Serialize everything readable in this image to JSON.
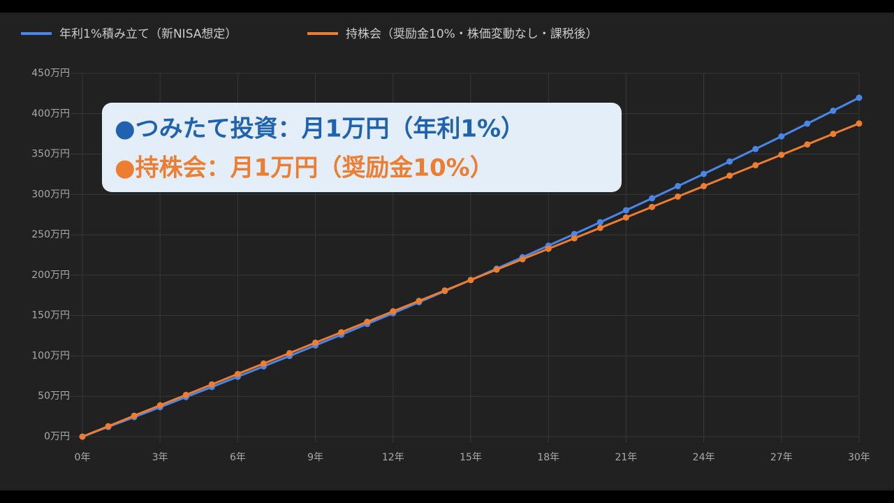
{
  "chart_data": {
    "type": "line",
    "legend_position": "top-left",
    "grid": true,
    "x": [
      0,
      1,
      2,
      3,
      4,
      5,
      6,
      7,
      8,
      9,
      10,
      11,
      12,
      13,
      14,
      15,
      16,
      17,
      18,
      19,
      20,
      21,
      22,
      23,
      24,
      25,
      26,
      27,
      28,
      29,
      30
    ],
    "series": [
      {
        "name": "年利1%積み立て（新NISA想定）",
        "color": "#4a86e8",
        "values": [
          0,
          12.1,
          24.2,
          36.5,
          49.0,
          61.5,
          74.2,
          87.0,
          99.9,
          113.0,
          126.2,
          139.5,
          152.9,
          166.5,
          180.3,
          194.1,
          208.1,
          222.3,
          236.6,
          251.0,
          265.6,
          280.4,
          295.2,
          310.3,
          325.4,
          340.8,
          356.3,
          371.9,
          387.7,
          403.7,
          419.8
        ]
      },
      {
        "name": "持株会（奨励金10%・株価変動なし・課税後）",
        "color": "#ed7d31",
        "values": [
          0,
          12.9,
          25.9,
          38.8,
          51.7,
          64.7,
          77.6,
          90.5,
          103.4,
          116.4,
          129.3,
          142.2,
          155.2,
          168.1,
          181.0,
          194.0,
          206.9,
          219.8,
          232.7,
          245.7,
          258.6,
          271.5,
          284.5,
          297.4,
          310.3,
          323.3,
          336.2,
          349.1,
          362.0,
          375.0,
          387.9
        ]
      }
    ],
    "xlim": [
      0,
      30
    ],
    "xticks": [
      {
        "value": 0,
        "label": "0年"
      },
      {
        "value": 3,
        "label": "3年"
      },
      {
        "value": 6,
        "label": "6年"
      },
      {
        "value": 9,
        "label": "9年"
      },
      {
        "value": 12,
        "label": "12年"
      },
      {
        "value": 15,
        "label": "15年"
      },
      {
        "value": 18,
        "label": "18年"
      },
      {
        "value": 21,
        "label": "21年"
      },
      {
        "value": 24,
        "label": "24年"
      },
      {
        "value": 27,
        "label": "27年"
      },
      {
        "value": 30,
        "label": "30年"
      }
    ],
    "ylim": [
      0,
      450
    ],
    "yticks": [
      {
        "value": 0,
        "label": "0万円"
      },
      {
        "value": 50,
        "label": "50万円"
      },
      {
        "value": 100,
        "label": "100万円"
      },
      {
        "value": 150,
        "label": "150万円"
      },
      {
        "value": 200,
        "label": "200万円"
      },
      {
        "value": 250,
        "label": "250万円"
      },
      {
        "value": 300,
        "label": "300万円"
      },
      {
        "value": 350,
        "label": "350万円"
      },
      {
        "value": 400,
        "label": "400万円"
      },
      {
        "value": 450,
        "label": "450万円"
      }
    ],
    "annotations": [
      {
        "text": "●つみたて投資：月1万円（年利1%）",
        "color": "#1f63b0"
      },
      {
        "text": "●持株会：月1万円（奨励金10%）",
        "color": "#ed7d31"
      }
    ]
  }
}
